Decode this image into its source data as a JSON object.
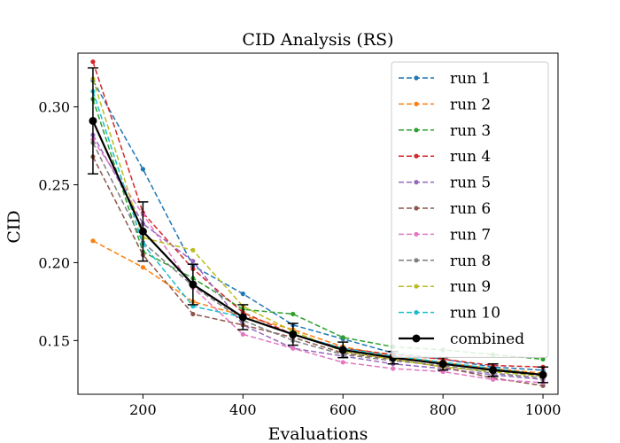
{
  "chart_data": {
    "type": "line",
    "title": "CID Analysis (RS)",
    "xlabel": "Evaluations",
    "ylabel": "CID",
    "xlim": [
      70,
      1030
    ],
    "ylim": [
      0.1155,
      0.3345
    ],
    "xticks": [
      200,
      400,
      600,
      800,
      1000
    ],
    "yticks": [
      0.15,
      0.2,
      0.25,
      0.3
    ],
    "xtick_labels": [
      "200",
      "400",
      "600",
      "800",
      "1000"
    ],
    "ytick_labels": [
      "0.15",
      "0.20",
      "0.25",
      "0.30"
    ],
    "grid": false,
    "legend_position": "top-right",
    "x": [
      100,
      200,
      300,
      400,
      500,
      600,
      700,
      800,
      900,
      1000
    ],
    "series": [
      {
        "name": "run 1",
        "color": "#1f77b4",
        "values": [
          0.317,
          0.26,
          0.198,
          0.18,
          0.16,
          0.151,
          0.142,
          0.138,
          0.133,
          0.131
        ]
      },
      {
        "name": "run 2",
        "color": "#ff7f0e",
        "values": [
          0.214,
          0.197,
          0.175,
          0.166,
          0.157,
          0.146,
          0.14,
          0.136,
          0.132,
          0.129
        ]
      },
      {
        "name": "run 3",
        "color": "#2ca02c",
        "values": [
          0.305,
          0.207,
          0.19,
          0.17,
          0.167,
          0.152,
          0.146,
          0.144,
          0.141,
          0.138
        ]
      },
      {
        "name": "run 4",
        "color": "#d62728",
        "values": [
          0.329,
          0.232,
          0.196,
          0.168,
          0.154,
          0.145,
          0.141,
          0.138,
          0.134,
          0.133
        ]
      },
      {
        "name": "run 5",
        "color": "#9467bd",
        "values": [
          0.282,
          0.225,
          0.201,
          0.16,
          0.145,
          0.14,
          0.135,
          0.132,
          0.128,
          0.125
        ]
      },
      {
        "name": "run 6",
        "color": "#8c564b",
        "values": [
          0.268,
          0.205,
          0.167,
          0.16,
          0.152,
          0.142,
          0.138,
          0.133,
          0.126,
          0.121
        ]
      },
      {
        "name": "run 7",
        "color": "#e377c2",
        "values": [
          0.279,
          0.231,
          0.184,
          0.154,
          0.145,
          0.136,
          0.132,
          0.13,
          0.125,
          0.123
        ]
      },
      {
        "name": "run 8",
        "color": "#7f7f7f",
        "values": [
          0.277,
          0.213,
          0.185,
          0.163,
          0.15,
          0.141,
          0.137,
          0.134,
          0.129,
          0.126
        ]
      },
      {
        "name": "run 9",
        "color": "#bcbd22",
        "values": [
          0.318,
          0.216,
          0.208,
          0.172,
          0.156,
          0.143,
          0.138,
          0.133,
          0.13,
          0.127
        ]
      },
      {
        "name": "run 10",
        "color": "#17becf",
        "values": [
          0.31,
          0.212,
          0.172,
          0.165,
          0.154,
          0.145,
          0.14,
          0.136,
          0.132,
          0.128
        ]
      },
      {
        "name": "combined",
        "color": "#000000",
        "values": [
          0.291,
          0.22,
          0.186,
          0.165,
          0.154,
          0.144,
          0.139,
          0.135,
          0.131,
          0.128
        ],
        "error": [
          0.034,
          0.019,
          0.013,
          0.008,
          0.007,
          0.005,
          0.004,
          0.004,
          0.004,
          0.005
        ]
      }
    ]
  }
}
